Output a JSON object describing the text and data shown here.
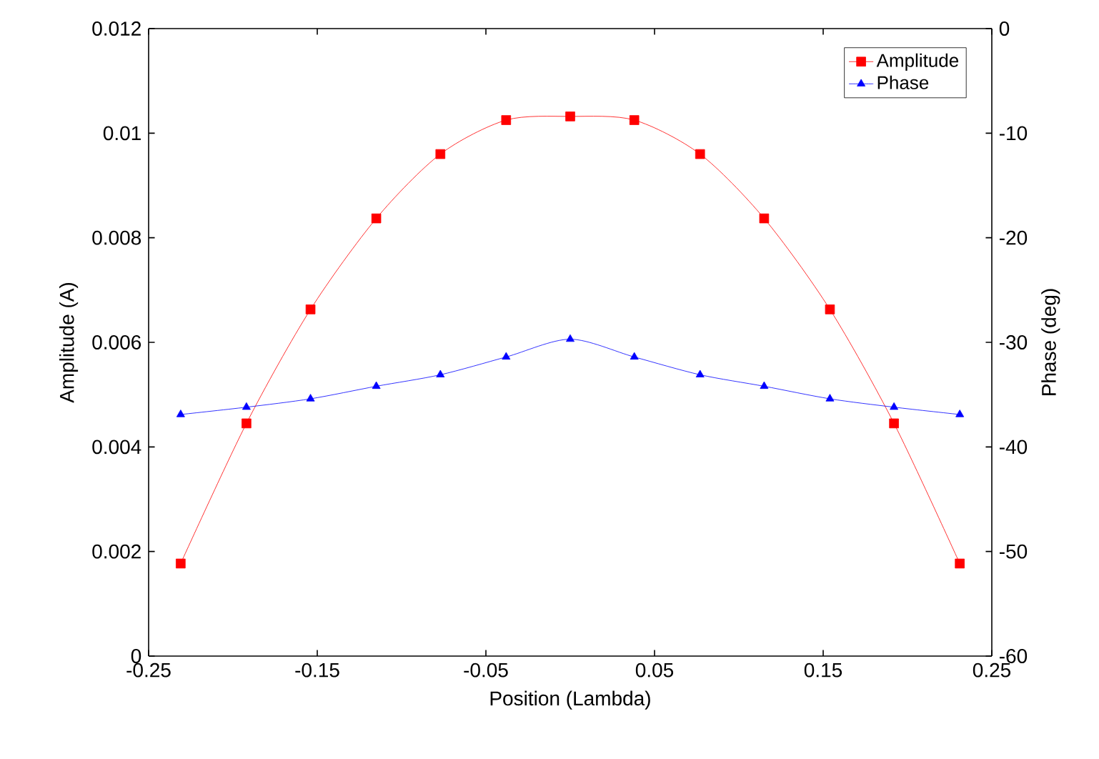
{
  "chart_data": {
    "type": "line",
    "xlabel": "Position (Lambda)",
    "ylabel": "Amplitude (A)",
    "y2label": "Phase (deg)",
    "x": [
      -0.231,
      -0.192,
      -0.154,
      -0.115,
      -0.077,
      -0.038,
      0,
      0.038,
      0.077,
      0.115,
      0.154,
      0.192,
      0.231
    ],
    "series": [
      {
        "name": "Amplitude",
        "color": "#ff0000",
        "marker": "square",
        "values": [
          0.00177,
          0.00445,
          0.00663,
          0.00837,
          0.0096,
          0.01025,
          0.01032,
          0.01025,
          0.0096,
          0.00837,
          0.00663,
          0.00445,
          0.00177
        ]
      },
      {
        "name": "Phase",
        "color": "#0000ff",
        "marker": "triangle",
        "axis": "y2",
        "values": [
          -36.9,
          -36.2,
          -35.4,
          -34.2,
          -33.1,
          -31.4,
          -29.7,
          -31.4,
          -33.1,
          -34.2,
          -35.4,
          -36.2,
          -36.9
        ]
      }
    ],
    "xlim": [
      -0.25,
      0.25
    ],
    "xticks": [
      -0.25,
      -0.15,
      -0.05,
      0.05,
      0.15,
      0.25
    ],
    "ylim": [
      0,
      0.012
    ],
    "yticks": [
      0,
      0.002,
      0.004,
      0.006,
      0.008,
      0.01,
      0.012
    ],
    "y2lim": [
      -60,
      0
    ],
    "y2ticks": [
      -60,
      -50,
      -40,
      -30,
      -20,
      -10,
      0
    ],
    "legend": "top right",
    "grid": false
  }
}
